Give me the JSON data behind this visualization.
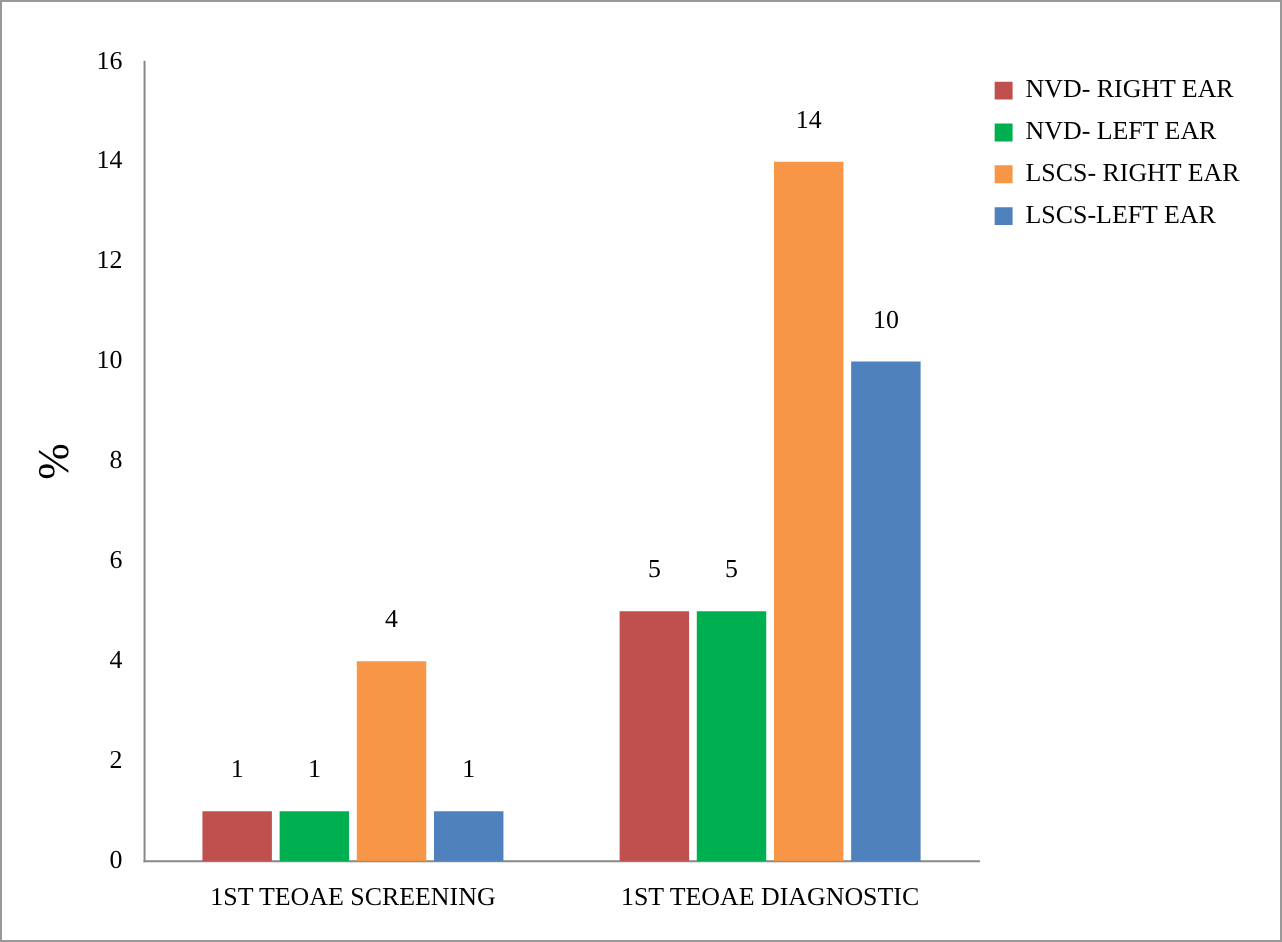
{
  "chart_data": {
    "type": "bar",
    "ylabel": "%",
    "categories": [
      "1ST TEOAE SCREENING",
      "1ST TEOAE DIAGNOSTIC"
    ],
    "series": [
      {
        "name": "NVD- RIGHT EAR",
        "color": "#c0504d",
        "values": [
          1,
          5
        ]
      },
      {
        "name": "NVD- LEFT EAR",
        "color": "#00b050",
        "values": [
          1,
          5
        ]
      },
      {
        "name": "LSCS- RIGHT EAR",
        "color": "#f79646",
        "values": [
          4,
          14
        ]
      },
      {
        "name": "LSCS-LEFT EAR",
        "color": "#4f81bd",
        "values": [
          1,
          10
        ]
      }
    ],
    "ylim": [
      0,
      16
    ],
    "yticks": [
      0,
      2,
      4,
      6,
      8,
      10,
      12,
      14,
      16
    ],
    "grid": false,
    "legend": "top right",
    "data_labels": true
  }
}
